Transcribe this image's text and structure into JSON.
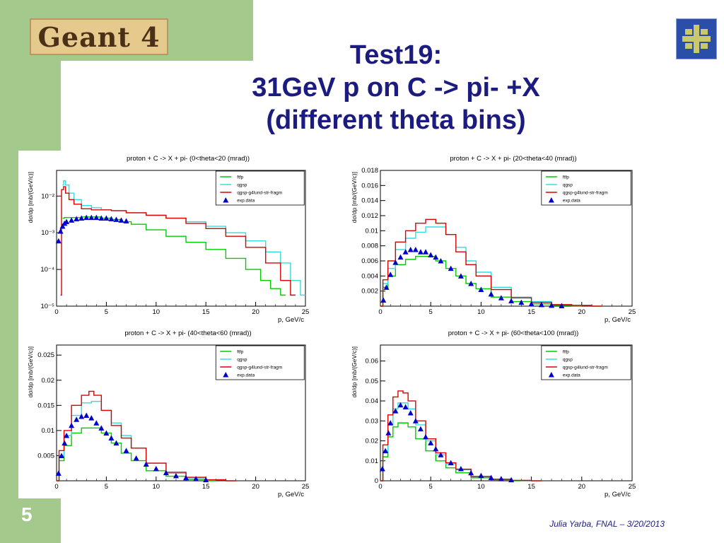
{
  "slide": {
    "logo_text": "Geant 4",
    "title_lines": [
      "Test19:",
      "31GeV p on C -> pi- +X",
      "(different theta bins)"
    ],
    "slide_number": "5",
    "footer": "Julia Yarba, FNAL – 3/20/2013",
    "colors": {
      "green_band": "#a3c98d",
      "title": "#1c1c80",
      "ftfp": "#00cc00",
      "qgsp": "#33dddd",
      "qgsp_g4lund": "#dd0000",
      "exp": "#0000cc"
    }
  },
  "legend": [
    "ftfp",
    "qgsp",
    "qgsp-g4lund-str-fragm",
    "exp.data"
  ],
  "chart_data": [
    {
      "type": "line",
      "title": "proton + C -> X + pi-   (0<theta<20 (mrad))",
      "xlabel": "p, GeV/c",
      "ylabel": "dσ/dp  [mb/(GeV/c)]",
      "xlim": [
        0,
        25
      ],
      "ylim": [
        1e-05,
        0.05
      ],
      "log_y": true,
      "xticks": [
        "0",
        "5",
        "10",
        "15",
        "20",
        "25"
      ],
      "yticks": [
        {
          "value": 0.01,
          "label": "10⁻²"
        },
        {
          "value": 0.001,
          "label": "10⁻³"
        },
        {
          "value": 0.0001,
          "label": "10⁻⁴"
        },
        {
          "value": 1e-05,
          "label": "10⁻⁵"
        }
      ],
      "series": [
        {
          "name": "ftfp",
          "color": "#00cc00",
          "x": [
            0.6,
            1,
            2,
            3,
            4,
            5,
            6,
            7,
            8,
            10,
            12,
            14,
            16,
            18,
            20,
            21,
            22,
            23
          ],
          "y": [
            0.0025,
            0.0026,
            0.0026,
            0.0027,
            0.0027,
            0.0025,
            0.0023,
            0.002,
            0.0017,
            0.0012,
            0.0008,
            0.00055,
            0.00035,
            0.0002,
            0.0001,
            5e-05,
            3e-05,
            2e-05
          ]
        },
        {
          "name": "qgsp",
          "color": "#33dddd",
          "x": [
            0.6,
            0.8,
            1,
            1.5,
            2,
            3,
            4,
            5,
            6,
            8,
            10,
            12,
            14,
            16,
            18,
            20,
            22,
            23,
            24,
            25
          ],
          "y": [
            0.02,
            0.026,
            0.02,
            0.012,
            0.008,
            0.0055,
            0.0048,
            0.0042,
            0.004,
            0.0035,
            0.003,
            0.0025,
            0.002,
            0.0015,
            0.001,
            0.0006,
            0.0003,
            0.00015,
            5e-05,
            2e-05
          ]
        },
        {
          "name": "qgsp-g4lund-str-fragm",
          "color": "#dd0000",
          "x": [
            0.4,
            0.6,
            0.8,
            1,
            1.5,
            2,
            3,
            4,
            5,
            6,
            8,
            10,
            12,
            14,
            16,
            18,
            20,
            22,
            23,
            24
          ],
          "y": [
            2e-05,
            0.015,
            0.018,
            0.012,
            0.008,
            0.006,
            0.0045,
            0.0042,
            0.0042,
            0.004,
            0.0035,
            0.003,
            0.0025,
            0.0018,
            0.0013,
            0.0008,
            0.0004,
            0.00015,
            5e-05,
            2e-05
          ]
        },
        {
          "name": "exp.data",
          "color": "#0000cc",
          "marker": "triangle",
          "x": [
            0.2,
            0.4,
            0.6,
            0.8,
            1,
            1.5,
            2,
            2.5,
            3,
            3.5,
            4,
            4.5,
            5,
            5.5,
            6,
            6.5,
            7
          ],
          "y": [
            0.0006,
            0.0011,
            0.0015,
            0.0018,
            0.002,
            0.0022,
            0.0024,
            0.0025,
            0.0026,
            0.0026,
            0.0026,
            0.0025,
            0.0025,
            0.0024,
            0.0023,
            0.0022,
            0.0021
          ]
        }
      ]
    },
    {
      "type": "line",
      "title": "proton + C -> X + pi-   (20<theta<40 (mrad))",
      "xlabel": "p, GeV/c",
      "ylabel": "dσ/dp  [mb/(GeV/c)]",
      "xlim": [
        0,
        25
      ],
      "ylim": [
        0,
        0.018
      ],
      "log_y": false,
      "xticks": [
        "0",
        "5",
        "10",
        "15",
        "20",
        "25"
      ],
      "yticks": [
        {
          "value": 0.002,
          "label": "0.002"
        },
        {
          "value": 0.004,
          "label": "0.004"
        },
        {
          "value": 0.006,
          "label": "0.006"
        },
        {
          "value": 0.008,
          "label": "0.008"
        },
        {
          "value": 0.01,
          "label": "0.01"
        },
        {
          "value": 0.012,
          "label": "0.012"
        },
        {
          "value": 0.014,
          "label": "0.014"
        },
        {
          "value": 0.016,
          "label": "0.016"
        },
        {
          "value": 0.018,
          "label": "0.018"
        }
      ],
      "series": [
        {
          "name": "ftfp",
          "color": "#00cc00",
          "x": [
            0,
            0.5,
            1,
            2,
            3,
            4,
            5,
            6,
            7,
            8,
            9,
            10,
            12,
            14,
            16,
            18,
            20
          ],
          "y": [
            0,
            0.0025,
            0.004,
            0.0055,
            0.0062,
            0.0066,
            0.0066,
            0.006,
            0.005,
            0.004,
            0.003,
            0.0023,
            0.0012,
            0.0006,
            0.0003,
            0.0001,
            0
          ]
        },
        {
          "name": "qgsp",
          "color": "#33dddd",
          "x": [
            0,
            0.5,
            1,
            2,
            3,
            4,
            5,
            6,
            7,
            8,
            9,
            10,
            12,
            14,
            16,
            18,
            20,
            22
          ],
          "y": [
            0,
            0.003,
            0.005,
            0.0075,
            0.009,
            0.0098,
            0.0105,
            0.0105,
            0.0095,
            0.0078,
            0.006,
            0.0045,
            0.0025,
            0.0012,
            0.0006,
            0.0002,
            0.0001,
            0
          ]
        },
        {
          "name": "qgsp-g4lund-str-fragm",
          "color": "#dd0000",
          "x": [
            0,
            0.5,
            1,
            2,
            3,
            4,
            5,
            6,
            7,
            8,
            9,
            10,
            12,
            14,
            16,
            18,
            20,
            22
          ],
          "y": [
            0,
            0.0035,
            0.006,
            0.0085,
            0.01,
            0.011,
            0.0115,
            0.011,
            0.0095,
            0.0072,
            0.0055,
            0.004,
            0.0022,
            0.0011,
            0.0005,
            0.0002,
            0.0001,
            0
          ]
        },
        {
          "name": "exp.data",
          "color": "#0000cc",
          "marker": "triangle",
          "x": [
            0.3,
            0.6,
            1,
            1.5,
            2,
            2.5,
            3,
            3.5,
            4,
            4.5,
            5,
            5.5,
            6,
            7,
            8,
            9,
            10,
            11,
            12,
            13,
            14,
            15,
            16,
            17,
            18
          ],
          "y": [
            0.0008,
            0.0025,
            0.0042,
            0.0058,
            0.0065,
            0.0072,
            0.0075,
            0.0075,
            0.0072,
            0.0072,
            0.0068,
            0.0065,
            0.006,
            0.005,
            0.004,
            0.003,
            0.0022,
            0.0016,
            0.0011,
            0.0007,
            0.0005,
            0.0003,
            0.0002,
            0.0001,
            5e-05
          ]
        }
      ]
    },
    {
      "type": "line",
      "title": "proton + C -> X + pi-   (40<theta<60 (mrad))",
      "xlabel": "p, GeV/c",
      "ylabel": "dσ/dp  [mb/(GeV/c)]",
      "xlim": [
        0,
        25
      ],
      "ylim": [
        0,
        0.027
      ],
      "log_y": false,
      "xticks": [
        "0",
        "5",
        "10",
        "15",
        "20",
        "25"
      ],
      "yticks": [
        {
          "value": 0.005,
          "label": "0.005"
        },
        {
          "value": 0.01,
          "label": "0.01"
        },
        {
          "value": 0.015,
          "label": "0.015"
        },
        {
          "value": 0.02,
          "label": "0.02"
        },
        {
          "value": 0.025,
          "label": "0.025"
        }
      ],
      "series": [
        {
          "name": "ftfp",
          "color": "#00cc00",
          "x": [
            0,
            0.5,
            1,
            2,
            3,
            4,
            5,
            6,
            7,
            8,
            10,
            12,
            14,
            16
          ],
          "y": [
            0,
            0.004,
            0.007,
            0.0095,
            0.0105,
            0.0105,
            0.0095,
            0.0075,
            0.0055,
            0.004,
            0.002,
            0.0009,
            0.0003,
            0
          ]
        },
        {
          "name": "qgsp",
          "color": "#33dddd",
          "x": [
            0,
            0.5,
            1,
            2,
            3,
            4,
            5,
            6,
            7,
            8,
            10,
            12,
            14,
            16,
            18
          ],
          "y": [
            0,
            0.005,
            0.009,
            0.013,
            0.0155,
            0.0158,
            0.014,
            0.0115,
            0.009,
            0.0065,
            0.0035,
            0.0015,
            0.0006,
            0.0002,
            0
          ]
        },
        {
          "name": "qgsp-g4lund-str-fragm",
          "color": "#dd0000",
          "x": [
            0,
            0.5,
            1,
            2,
            3,
            3.5,
            4,
            5,
            6,
            7,
            8,
            10,
            12,
            14,
            16,
            18
          ],
          "y": [
            0,
            0.006,
            0.01,
            0.015,
            0.017,
            0.0178,
            0.017,
            0.014,
            0.011,
            0.0085,
            0.0065,
            0.0035,
            0.0017,
            0.0007,
            0.0002,
            0
          ]
        },
        {
          "name": "exp.data",
          "color": "#0000cc",
          "marker": "triangle",
          "x": [
            0.2,
            0.5,
            0.8,
            1,
            1.5,
            2,
            2.5,
            3,
            3.5,
            4,
            4.5,
            5,
            5.5,
            6,
            7,
            8,
            9,
            10,
            11,
            12,
            13,
            14,
            15
          ],
          "y": [
            0.0015,
            0.005,
            0.0075,
            0.009,
            0.011,
            0.0122,
            0.0128,
            0.013,
            0.0125,
            0.0115,
            0.0105,
            0.0095,
            0.0085,
            0.0075,
            0.006,
            0.0045,
            0.0033,
            0.0024,
            0.0016,
            0.001,
            0.0006,
            0.0004,
            0.0002
          ]
        }
      ]
    },
    {
      "type": "line",
      "title": "proton + C -> X + pi-   (60<theta<100 (mrad))",
      "xlabel": "p, GeV/c",
      "ylabel": "dσ/dp  [mb/(GeV/c)]",
      "xlim": [
        0,
        25
      ],
      "ylim": [
        0,
        0.068
      ],
      "log_y": false,
      "xticks": [
        "0",
        "5",
        "10",
        "15",
        "20",
        "25"
      ],
      "yticks": [
        {
          "value": 0,
          "label": "0"
        },
        {
          "value": 0.01,
          "label": "0.01"
        },
        {
          "value": 0.02,
          "label": "0.02"
        },
        {
          "value": 0.03,
          "label": "0.03"
        },
        {
          "value": 0.04,
          "label": "0.04"
        },
        {
          "value": 0.05,
          "label": "0.05"
        },
        {
          "value": 0.06,
          "label": "0.06"
        }
      ],
      "series": [
        {
          "name": "ftfp",
          "color": "#00cc00",
          "x": [
            0,
            0.5,
            1,
            1.5,
            2,
            2.5,
            3,
            4,
            5,
            6,
            7,
            8,
            10,
            12,
            14
          ],
          "y": [
            0,
            0.012,
            0.022,
            0.027,
            0.029,
            0.029,
            0.027,
            0.021,
            0.015,
            0.01,
            0.0065,
            0.004,
            0.0015,
            0.0005,
            0
          ]
        },
        {
          "name": "qgsp",
          "color": "#33dddd",
          "x": [
            0,
            0.5,
            1,
            1.5,
            2,
            2.5,
            3,
            4,
            5,
            6,
            7,
            8,
            10,
            12,
            14,
            16
          ],
          "y": [
            0,
            0.015,
            0.028,
            0.036,
            0.039,
            0.039,
            0.036,
            0.028,
            0.02,
            0.013,
            0.0085,
            0.0055,
            0.002,
            0.0007,
            0.0002,
            0
          ]
        },
        {
          "name": "qgsp-g4lund-str-fragm",
          "color": "#dd0000",
          "x": [
            0,
            0.5,
            1,
            1.5,
            2,
            2.5,
            3,
            4,
            5,
            6,
            7,
            8,
            10,
            12,
            14,
            16
          ],
          "y": [
            0,
            0.018,
            0.033,
            0.042,
            0.045,
            0.044,
            0.04,
            0.03,
            0.021,
            0.014,
            0.009,
            0.0058,
            0.0022,
            0.0008,
            0.0002,
            0
          ]
        },
        {
          "name": "exp.data",
          "color": "#0000cc",
          "marker": "triangle",
          "x": [
            0.2,
            0.5,
            0.8,
            1,
            1.5,
            2,
            2.5,
            3,
            3.5,
            4,
            4.5,
            5,
            5.5,
            6,
            7,
            8,
            9,
            10,
            11,
            12,
            13
          ],
          "y": [
            0.006,
            0.015,
            0.024,
            0.029,
            0.035,
            0.038,
            0.037,
            0.034,
            0.03,
            0.026,
            0.022,
            0.019,
            0.016,
            0.013,
            0.009,
            0.006,
            0.004,
            0.0026,
            0.0016,
            0.001,
            0.0005
          ]
        }
      ]
    }
  ]
}
